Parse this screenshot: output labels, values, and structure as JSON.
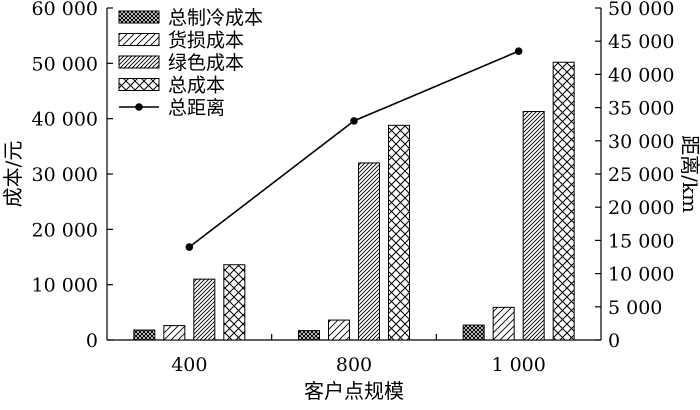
{
  "chart_data": {
    "type": "bar",
    "categories": [
      "400",
      "800",
      "1 000"
    ],
    "series": [
      {
        "name": "总制冷成本",
        "kind": "bar",
        "axis": "left",
        "pattern": "crosshatch-dense",
        "values": [
          1800,
          1700,
          2700
        ]
      },
      {
        "name": "货损成本",
        "kind": "bar",
        "axis": "left",
        "pattern": "diag-sparse",
        "values": [
          2600,
          3600,
          5900
        ]
      },
      {
        "name": "绿色成本",
        "kind": "bar",
        "axis": "left",
        "pattern": "diag-dense",
        "values": [
          11000,
          32000,
          41300
        ]
      },
      {
        "name": "总成本",
        "kind": "bar",
        "axis": "left",
        "pattern": "crosshatch-open",
        "values": [
          13600,
          38800,
          50200
        ]
      },
      {
        "name": "总距离",
        "kind": "line",
        "axis": "right",
        "values": [
          14000,
          33000,
          43500
        ]
      }
    ],
    "xlabel": "客户点规模",
    "ylabel": "成本/元",
    "y2label": "距离/km",
    "ylim": [
      0,
      60000
    ],
    "y2lim": [
      0,
      50000
    ],
    "yticks": [
      "0",
      "10 000",
      "20 000",
      "30 000",
      "40 000",
      "50 000",
      "60 000"
    ],
    "y2ticks": [
      "0",
      "5 000",
      "10 000",
      "15 000",
      "20 000",
      "25 000",
      "30 000",
      "35 000",
      "40 000",
      "45 000",
      "50 000"
    ],
    "legend_position": "top-left",
    "grid": false
  }
}
